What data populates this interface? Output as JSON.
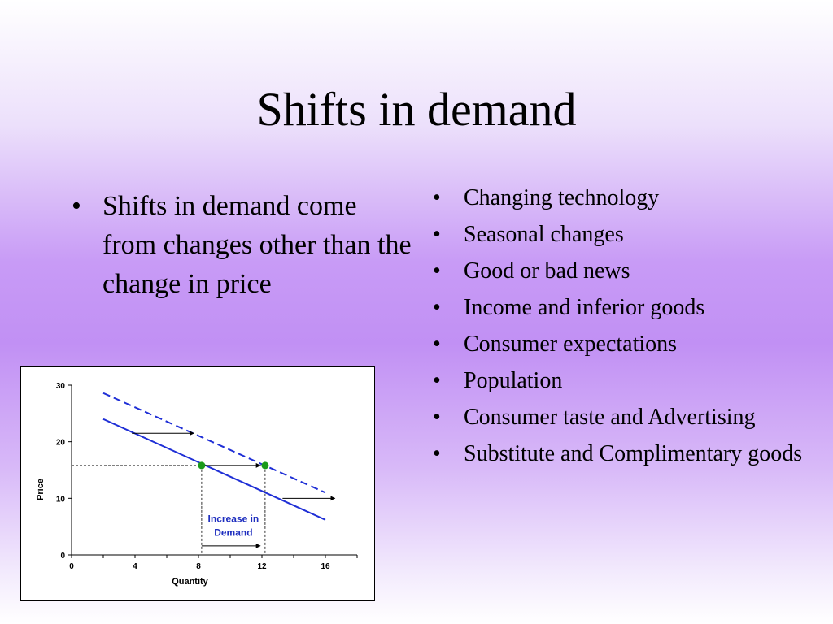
{
  "slide": {
    "title": "Shifts in demand",
    "left_bullets": [
      "Shifts in demand come from changes other than the change in price"
    ],
    "right_bullets": [
      "Changing technology",
      "Seasonal changes",
      "Good or bad news",
      "Income and inferior goods",
      "Consumer expectations",
      "Population",
      "Consumer taste and Advertising",
      "Substitute and Complimentary goods"
    ]
  },
  "chart_data": {
    "type": "line",
    "xlabel": "Quantity",
    "ylabel": "Price",
    "xlim": [
      0,
      18
    ],
    "ylim": [
      0,
      30
    ],
    "x_ticks": [
      0,
      4,
      8,
      12,
      16
    ],
    "y_ticks": [
      0,
      10,
      20,
      30
    ],
    "series": [
      {
        "style": "solid",
        "color": "#1f2fd6",
        "x": [
          2,
          16
        ],
        "y": [
          24,
          6.2
        ]
      },
      {
        "style": "dashed",
        "color": "#1f2fd6",
        "x": [
          2,
          16
        ],
        "y": [
          28.6,
          11
        ]
      }
    ],
    "points": [
      {
        "x": 8.2,
        "y": 15.8,
        "color": "#1a9a1a"
      },
      {
        "x": 12.2,
        "y": 15.8,
        "color": "#1a9a1a"
      }
    ],
    "guide_lines": {
      "price": 15.8,
      "quantities": [
        8.2,
        12.2
      ]
    },
    "shift_arrows": [
      {
        "y": 21.5,
        "x_from": 3.8,
        "x_to": 7.7
      },
      {
        "y": 15.8,
        "x_from": 8.2,
        "x_to": 11.9
      },
      {
        "y": 10,
        "x_from": 13.3,
        "x_to": 16.6
      },
      {
        "y": 1.6,
        "x_from": 8.2,
        "x_to": 11.9
      }
    ],
    "annotation": {
      "lines": [
        "Increase in",
        "Demand"
      ],
      "x": 10.2,
      "y": 5.8
    }
  }
}
